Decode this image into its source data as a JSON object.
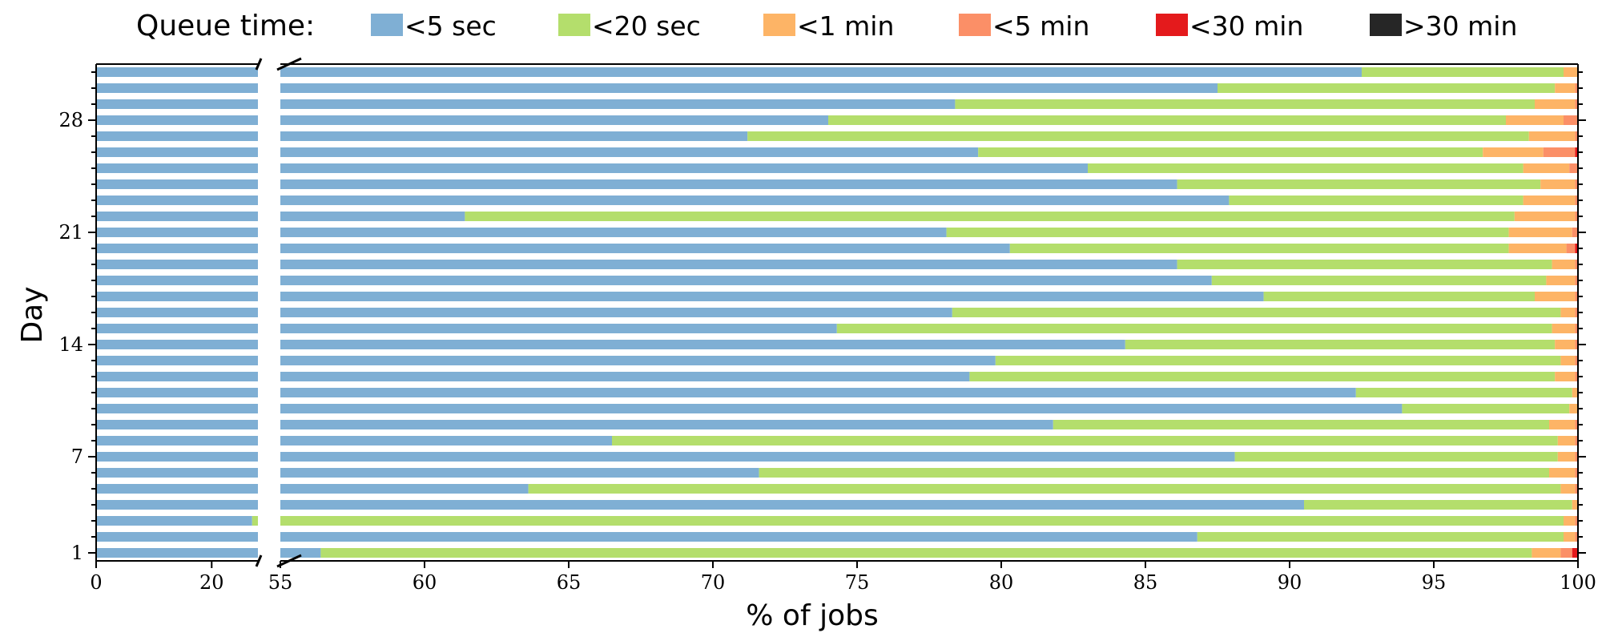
{
  "chart_data": {
    "type": "bar",
    "orientation": "horizontal",
    "stacked": true,
    "legend": {
      "title": "Queue time:",
      "placement": "top",
      "entries": [
        {
          "label": "<5 sec",
          "color": "#7fafd4"
        },
        {
          "label": "<20 sec",
          "color": "#b4de6c"
        },
        {
          "label": "<1 min",
          "color": "#fdb466"
        },
        {
          "label": "<5 min",
          "color": "#fb8f67"
        },
        {
          "label": "<30 min",
          "color": "#e41a1c"
        },
        {
          "label": ">30 min",
          "color": "#262626"
        }
      ]
    },
    "xlabel": "% of jobs",
    "ylabel": "Day",
    "xaxis": {
      "broken": true,
      "segments": [
        {
          "range": [
            0,
            28
          ],
          "ticks": [
            0,
            20
          ]
        },
        {
          "range": [
            55,
            100
          ],
          "ticks": [
            55,
            60,
            65,
            70,
            75,
            80,
            85,
            90,
            95,
            100
          ]
        }
      ]
    },
    "y_tick_labels": [
      "1",
      "7",
      "14",
      "21",
      "28"
    ],
    "y_tick_days": [
      1,
      7,
      14,
      21,
      28
    ],
    "days": [
      1,
      2,
      3,
      4,
      5,
      6,
      7,
      8,
      9,
      10,
      11,
      12,
      13,
      14,
      15,
      16,
      17,
      18,
      19,
      20,
      21,
      22,
      23,
      24,
      25,
      26,
      27,
      28,
      29,
      30,
      31
    ],
    "series": [
      {
        "name": "<5 sec",
        "values": [
          56.4,
          86.8,
          27.0,
          90.5,
          63.6,
          71.6,
          88.1,
          66.5,
          81.8,
          93.9,
          92.3,
          78.9,
          79.8,
          84.3,
          74.3,
          78.3,
          89.1,
          87.3,
          86.1,
          80.3,
          78.1,
          61.4,
          87.9,
          86.1,
          83.0,
          79.2,
          71.2,
          74.0,
          78.4,
          87.5,
          92.5
        ]
      },
      {
        "name": "<20 sec",
        "values": [
          42.0,
          12.7,
          72.5,
          9.3,
          35.8,
          27.4,
          11.2,
          32.8,
          17.2,
          5.8,
          7.5,
          20.3,
          19.6,
          14.9,
          24.8,
          21.1,
          9.4,
          11.6,
          13.0,
          17.3,
          19.5,
          36.4,
          10.2,
          12.6,
          15.1,
          17.5,
          27.1,
          23.5,
          20.1,
          11.7,
          7.0
        ]
      },
      {
        "name": "<1 min",
        "values": [
          1.0,
          0.4,
          0.4,
          0.2,
          0.5,
          0.9,
          0.6,
          0.6,
          0.9,
          0.3,
          0.2,
          0.7,
          0.5,
          0.7,
          0.8,
          0.5,
          1.4,
          1.0,
          0.8,
          2.0,
          2.2,
          2.1,
          1.8,
          1.2,
          1.6,
          2.1,
          1.6,
          2.0,
          1.4,
          0.7,
          0.5
        ]
      },
      {
        "name": "<5 min",
        "values": [
          0.4,
          0.1,
          0.1,
          0.0,
          0.1,
          0.1,
          0.1,
          0.1,
          0.1,
          0.0,
          0.0,
          0.1,
          0.1,
          0.1,
          0.1,
          0.1,
          0.1,
          0.1,
          0.1,
          0.3,
          0.2,
          0.1,
          0.1,
          0.1,
          0.3,
          1.1,
          0.1,
          0.5,
          0.1,
          0.1,
          0.0
        ]
      },
      {
        "name": "<30 min",
        "values": [
          0.2,
          0.0,
          0.0,
          0.0,
          0.0,
          0.0,
          0.0,
          0.0,
          0.0,
          0.0,
          0.0,
          0.0,
          0.0,
          0.0,
          0.0,
          0.0,
          0.0,
          0.0,
          0.0,
          0.1,
          0.0,
          0.1,
          0.0,
          0.0,
          0.0,
          0.1,
          0.0,
          0.0,
          0.0,
          0.0,
          0.0
        ]
      },
      {
        "name": ">30 min",
        "values": [
          0.0,
          0.0,
          0.0,
          0.0,
          0.0,
          0.0,
          0.0,
          0.0,
          0.0,
          0.0,
          0.0,
          0.0,
          0.0,
          0.0,
          0.0,
          0.0,
          0.0,
          0.0,
          0.0,
          0.0,
          0.0,
          0.0,
          0.0,
          0.0,
          0.0,
          0.0,
          0.0,
          0.0,
          0.0,
          0.0,
          0.0
        ]
      }
    ]
  }
}
